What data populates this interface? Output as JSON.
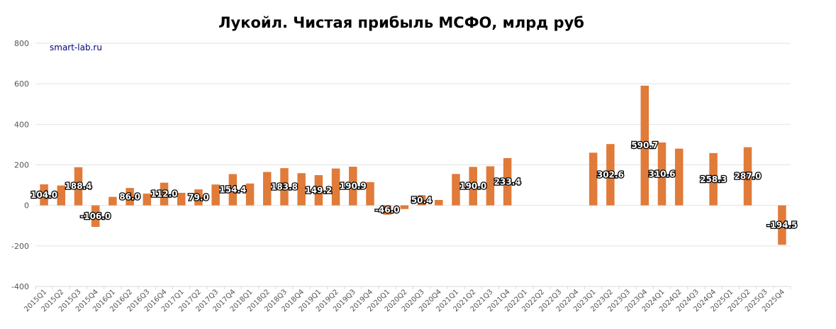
{
  "chart_data": {
    "type": "bar",
    "title": "Лукойл. Чистая прибыль МСФО, млрд руб",
    "watermark": "smart-lab.ru",
    "ylim": [
      -400,
      800
    ],
    "yticks": [
      "800",
      "600",
      "400",
      "200",
      "0",
      "-200",
      "-400"
    ],
    "ytick_values": [
      800,
      600,
      400,
      200,
      0,
      -200,
      -400
    ],
    "grid": true,
    "bar_color": "#e07b39",
    "categories": [
      "2015Q1",
      "2015Q2",
      "2015Q3",
      "2015Q4",
      "2016Q1",
      "2016Q2",
      "2016Q3",
      "2016Q4",
      "2017Q1",
      "2017Q2",
      "2017Q3",
      "2017Q4",
      "2018Q1",
      "2018Q2",
      "2018Q3",
      "2018Q4",
      "2019Q1",
      "2019Q2",
      "2019Q3",
      "2019Q4",
      "2020Q1",
      "2020Q2",
      "2020Q3",
      "2020Q4",
      "2021Q1",
      "2021Q2",
      "2021Q3",
      "2021Q4",
      "2022Q1",
      "2022Q2",
      "2022Q3",
      "2022Q4",
      "2023Q1",
      "2023Q2",
      "2023Q3",
      "2023Q4",
      "2024Q1",
      "2024Q2",
      "2024Q3",
      "2024Q4",
      "2025Q1",
      "2025Q2",
      "2025Q3",
      "2025Q4"
    ],
    "values": [
      104.0,
      98,
      188.4,
      -106.0,
      42,
      86.0,
      58,
      112.0,
      62,
      79.0,
      103,
      154.4,
      108,
      165,
      183.8,
      159,
      149.2,
      182,
      190.9,
      115,
      -46.0,
      -18,
      50.4,
      27,
      155,
      190.0,
      193,
      233.4,
      null,
      null,
      null,
      null,
      260,
      302.6,
      null,
      590.7,
      310.6,
      280,
      null,
      258.3,
      null,
      287.0,
      null,
      -194.5
    ],
    "data_labels": {
      "0": "104.0",
      "2": "188.4",
      "3": "-106.0",
      "5": "86.0",
      "7": "112.0",
      "9": "79.0",
      "11": "154.4",
      "14": "183.8",
      "16": "149.2",
      "18": "190.9",
      "20": "-46.0",
      "22": "50.4",
      "25": "190.0",
      "27": "233.4",
      "33": "302.6",
      "35": "590.7",
      "36": "310.6",
      "39": "258.3",
      "41": "287.0",
      "43": "-194.5"
    }
  }
}
